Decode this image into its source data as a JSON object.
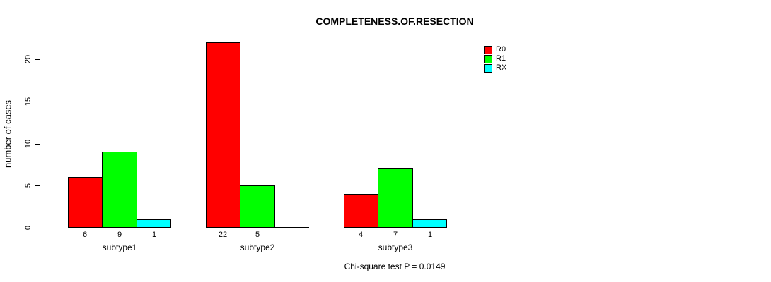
{
  "chart_data": {
    "type": "bar",
    "title": "COMPLETENESS.OF.RESECTION",
    "ylabel": "number of cases",
    "xlabel": "",
    "categories": [
      "subtype1",
      "subtype2",
      "subtype3"
    ],
    "series": [
      {
        "name": "R0",
        "color": "#ff0000",
        "values": [
          6,
          22,
          4
        ]
      },
      {
        "name": "R1",
        "color": "#00ff00",
        "values": [
          9,
          5,
          7
        ]
      },
      {
        "name": "RX",
        "color": "#00ffff",
        "values": [
          1,
          0,
          1
        ]
      }
    ],
    "bar_value_labels": [
      [
        "6",
        "9",
        "1"
      ],
      [
        "22",
        "5",
        ""
      ],
      [
        "4",
        "7",
        "1"
      ]
    ],
    "yticks": [
      0,
      5,
      10,
      15,
      20
    ],
    "ylim": [
      0,
      22
    ],
    "grid": false,
    "bar_border_color": "#000000",
    "legend": {
      "position": "topright",
      "entries": [
        {
          "label": "R0",
          "color": "#ff0000"
        },
        {
          "label": "R1",
          "color": "#00ff00"
        },
        {
          "label": "RX",
          "color": "#00ffff"
        }
      ]
    },
    "annotation": "Chi-square test P = 0.0149"
  }
}
